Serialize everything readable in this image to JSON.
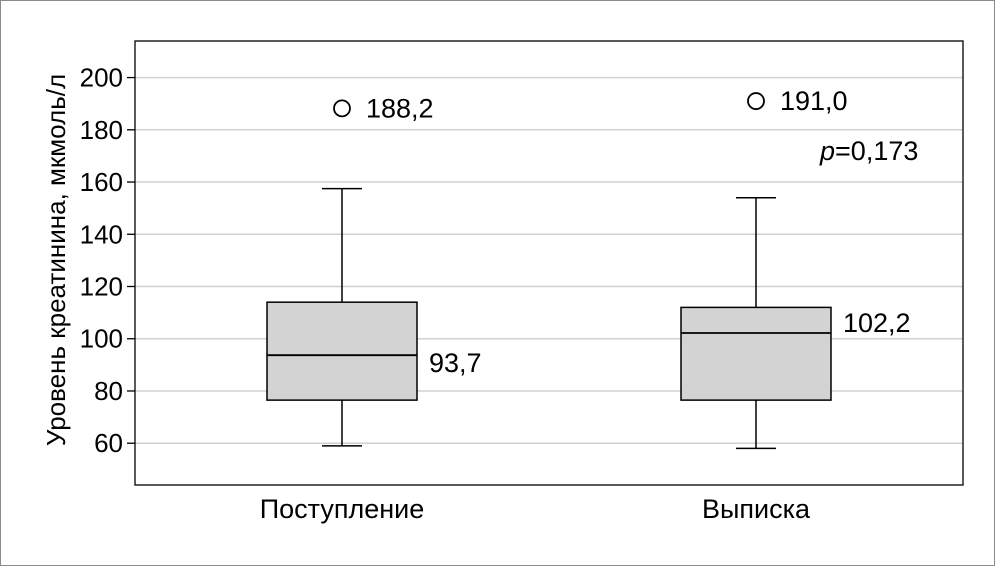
{
  "chart_data": {
    "type": "box",
    "ylabel": "Уровень креатинина, мкмоль/л",
    "ylim": [
      44,
      214
    ],
    "yticks": [
      60,
      80,
      100,
      120,
      140,
      160,
      180,
      200
    ],
    "grid": true,
    "categories": [
      "Поступление",
      "Выписка"
    ],
    "boxes": [
      {
        "category": "Поступление",
        "whisker_low": 59,
        "q1": 76.5,
        "median": 93.7,
        "q3": 114,
        "whisker_high": 157.5,
        "outliers": [
          188.2
        ],
        "median_label": "93,7",
        "outlier_labels": [
          "188,2"
        ],
        "fill": "#d3d3d3"
      },
      {
        "category": "Выписка",
        "whisker_low": 58,
        "q1": 76.5,
        "median": 102.2,
        "q3": 112,
        "whisker_high": 154,
        "outliers": [
          191.0
        ],
        "median_label": "102,2",
        "outlier_labels": [
          "191,0"
        ],
        "fill": "#d3d3d3"
      }
    ],
    "annotation": {
      "p_symbol": "p",
      "p_text": "=0,173"
    },
    "gridline_color": "#d0d0d0"
  }
}
